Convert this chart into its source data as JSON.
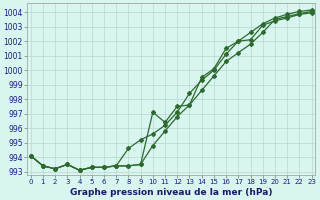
{
  "xlabel": "Graphe pression niveau de la mer (hPa)",
  "x": [
    0,
    1,
    2,
    3,
    4,
    5,
    6,
    7,
    8,
    9,
    10,
    11,
    12,
    13,
    14,
    15,
    16,
    17,
    18,
    19,
    20,
    21,
    22,
    23
  ],
  "line1": [
    994.1,
    993.4,
    993.2,
    993.5,
    993.1,
    993.3,
    993.3,
    993.4,
    993.4,
    993.5,
    994.8,
    995.8,
    996.8,
    997.6,
    998.6,
    999.6,
    1000.6,
    1001.2,
    1001.8,
    1002.6,
    1003.5,
    1003.7,
    1003.9,
    1004.05
  ],
  "line2": [
    994.1,
    993.4,
    993.2,
    993.5,
    993.1,
    993.3,
    993.3,
    993.4,
    993.4,
    993.5,
    997.1,
    996.4,
    997.5,
    997.6,
    999.5,
    1000.1,
    1001.5,
    1002.0,
    1002.1,
    1003.1,
    1003.4,
    1003.6,
    1003.85,
    1003.95
  ],
  "line3": [
    994.1,
    993.4,
    993.2,
    993.5,
    993.1,
    993.3,
    993.3,
    993.4,
    994.6,
    995.2,
    995.6,
    996.2,
    997.1,
    998.4,
    999.3,
    1000.0,
    1001.1,
    1002.0,
    1002.6,
    1003.2,
    1003.6,
    1003.85,
    1004.05,
    1004.15
  ],
  "line_color": "#2d6a2d",
  "bg_color": "#d8f5f0",
  "grid_color": "#b8d8d0",
  "ylim": [
    992.8,
    1004.6
  ],
  "yticks": [
    993,
    994,
    995,
    996,
    997,
    998,
    999,
    1000,
    1001,
    1002,
    1003,
    1004
  ],
  "xlim": [
    -0.3,
    23.3
  ],
  "xticks": [
    0,
    1,
    2,
    3,
    4,
    5,
    6,
    7,
    8,
    9,
    10,
    11,
    12,
    13,
    14,
    15,
    16,
    17,
    18,
    19,
    20,
    21,
    22,
    23
  ],
  "tick_color": "#1a1a8a",
  "xlabel_color": "#1a1a6e",
  "xlabel_fontsize": 6.5,
  "ytick_fontsize": 5.5,
  "xtick_fontsize": 5.0,
  "marker": "D",
  "markersize": 2.0,
  "linewidth": 0.9
}
